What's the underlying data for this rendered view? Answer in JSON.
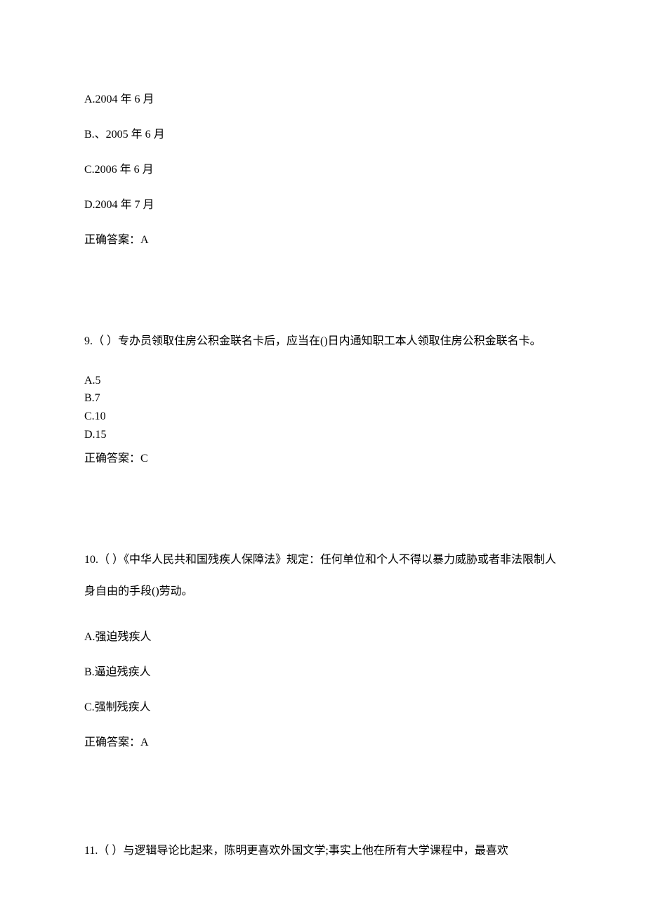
{
  "q8": {
    "optionA": "A.2004 年 6 月",
    "optionB": "B.、2005 年 6 月",
    "optionC": "C.2006 年 6 月",
    "optionD": "D.2004 年 7 月",
    "answer": "正确答案：A"
  },
  "q9": {
    "question": "9.（ ）专办员领取住房公积金联名卡后，应当在()日内通知职工本人领取住房公积金联名卡。",
    "optionA": "A.5",
    "optionB": "B.7",
    "optionC": "C.10",
    "optionD": "D.15",
    "answer": "正确答案：C"
  },
  "q10": {
    "question": "10.（ ）《中华人民共和国残疾人保障法》规定：任何单位和个人不得以暴力威胁或者非法限制人身自由的手段()劳动。",
    "optionA": "A.强迫残疾人",
    "optionB": "B.逼迫残疾人",
    "optionC": "C.强制残疾人",
    "answer": "正确答案：A"
  },
  "q11": {
    "question": "11.（ ）与逻辑导论比起来，陈明更喜欢外国文学;事实上他在所有大学课程中，最喜欢"
  }
}
